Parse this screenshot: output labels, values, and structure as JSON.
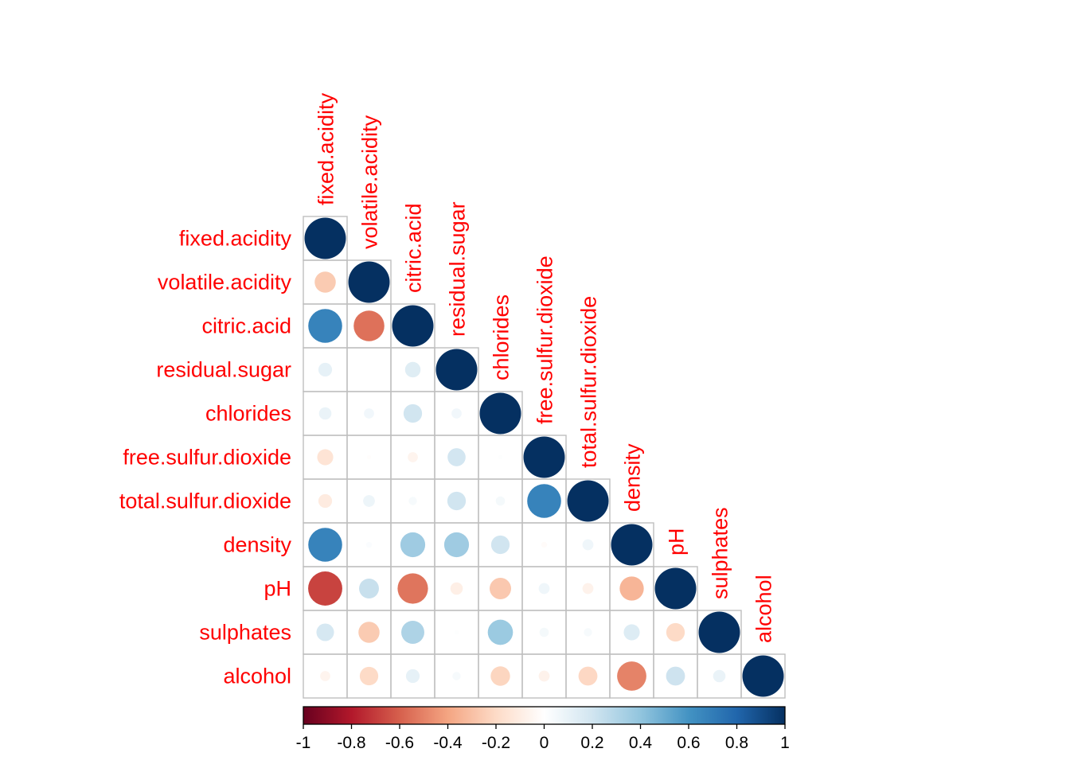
{
  "chart_data": {
    "type": "heatmap",
    "style": "corrplot-circle-lower-triangle",
    "variables": [
      "fixed.acidity",
      "volatile.acidity",
      "citric.acid",
      "residual.sugar",
      "chlorides",
      "free.sulfur.dioxide",
      "total.sulfur.dioxide",
      "density",
      "pH",
      "sulphates",
      "alcohol"
    ],
    "matrix": [
      [
        1.0,
        -0.26,
        0.67,
        0.11,
        0.09,
        -0.15,
        -0.11,
        0.67,
        -0.68,
        0.18,
        -0.06
      ],
      [
        -0.26,
        1.0,
        -0.55,
        0.0,
        0.06,
        -0.01,
        0.08,
        0.02,
        0.23,
        -0.26,
        -0.2
      ],
      [
        0.67,
        -0.55,
        1.0,
        0.14,
        0.2,
        -0.06,
        0.04,
        0.36,
        -0.54,
        0.31,
        0.11
      ],
      [
        0.11,
        0.0,
        0.14,
        1.0,
        0.06,
        0.19,
        0.2,
        0.36,
        -0.09,
        0.01,
        0.04
      ],
      [
        0.09,
        0.06,
        0.2,
        0.06,
        1.0,
        0.01,
        0.05,
        0.2,
        -0.27,
        0.37,
        -0.22
      ],
      [
        -0.15,
        -0.01,
        -0.06,
        0.19,
        0.01,
        1.0,
        0.67,
        -0.02,
        0.07,
        0.05,
        -0.07
      ],
      [
        -0.11,
        0.08,
        0.04,
        0.2,
        0.05,
        0.67,
        1.0,
        0.07,
        -0.07,
        0.04,
        -0.21
      ],
      [
        0.67,
        0.02,
        0.36,
        0.36,
        0.2,
        -0.02,
        0.07,
        1.0,
        -0.34,
        0.15,
        -0.5
      ],
      [
        -0.68,
        0.23,
        -0.54,
        -0.09,
        -0.27,
        0.07,
        -0.07,
        -0.34,
        1.0,
        -0.2,
        0.21
      ],
      [
        0.18,
        -0.26,
        0.31,
        0.01,
        0.37,
        0.05,
        0.04,
        0.15,
        -0.2,
        1.0,
        0.09
      ],
      [
        -0.06,
        -0.2,
        0.11,
        0.04,
        -0.22,
        -0.07,
        -0.21,
        -0.5,
        0.21,
        0.09,
        1.0
      ]
    ],
    "color_scale": {
      "range": [
        -1,
        1
      ],
      "ticks": [
        "-1",
        "-0.8",
        "-0.6",
        "-0.4",
        "-0.2",
        "0",
        "0.2",
        "0.4",
        "0.6",
        "0.8",
        "1"
      ],
      "stops": [
        "#67001F",
        "#B2182B",
        "#D6604D",
        "#F4A582",
        "#FDDBC7",
        "#FFFFFF",
        "#D1E5F0",
        "#92C5DE",
        "#4393C3",
        "#2166AC",
        "#053061"
      ],
      "legend_placement": "bottom"
    },
    "label_color": "#FF0000",
    "grid_color": "#BEBEBE"
  }
}
